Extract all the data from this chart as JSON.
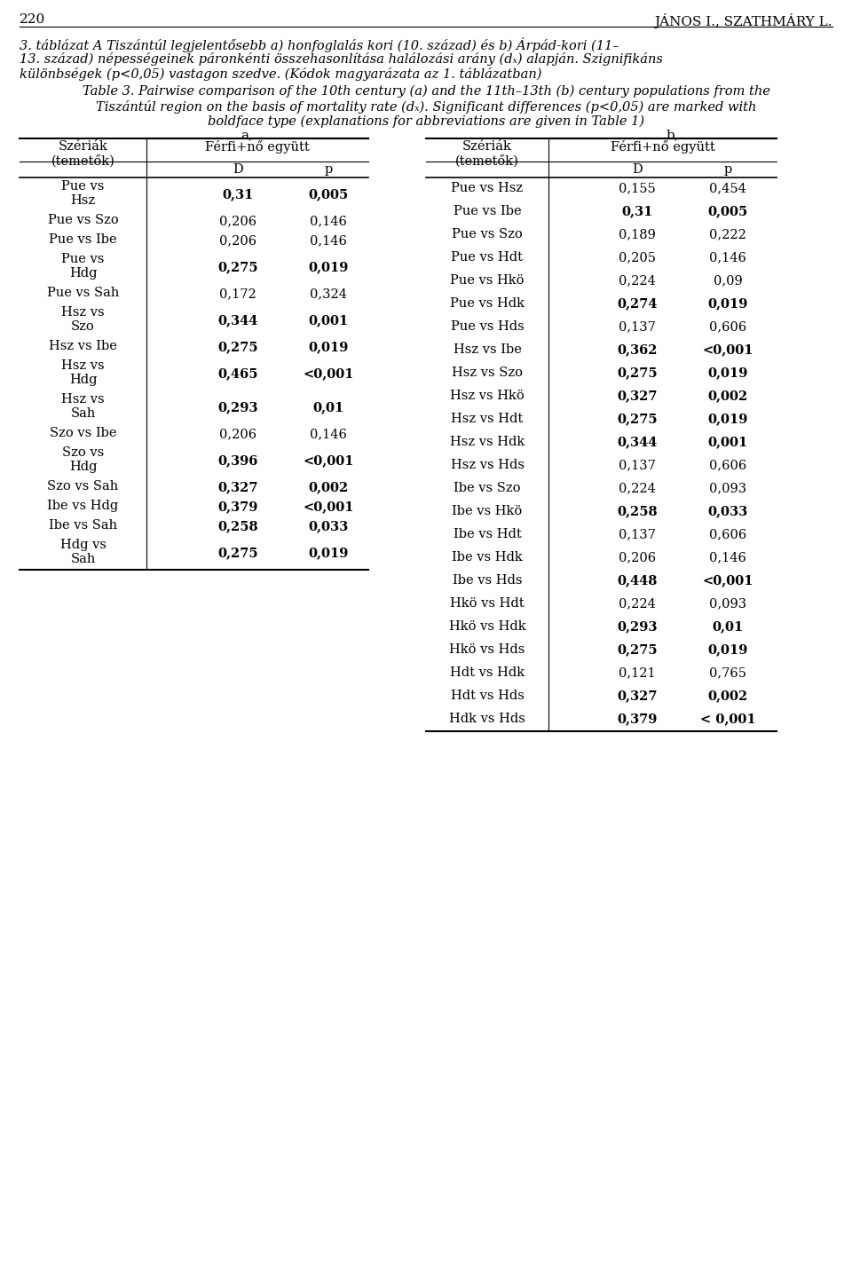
{
  "page_num": "220",
  "page_author": "JÁNOS I., SZATHMÁRY L.",
  "hu_caption_lines": [
    "3. táblázat A Tiszántúl legjelentősebb a) honfoglalás kori (10. század) és b) Árpád-kori (11–",
    "13. század) népességeinek páronkénti összehasonlítása halálozási arány (dₓ) alapján. Szignifikáns",
    "különbségek (p<0,05) vastagon szedve. (Kódok magyarázata az 1. táblázatban)"
  ],
  "en_caption_lines": [
    [
      "Table 3. Pairwise comparison of the 10",
      "th",
      " century (a) and the 11",
      "th",
      "–13",
      "th",
      " (b) century populations from the"
    ],
    [
      "Tiszántúl region on the basis of mortality rate (dₓ). Significant differences (p<0,05) are marked with"
    ],
    [
      "boldface type (explanations for abbreviations are given in Table 1)"
    ]
  ],
  "label_a": "a,",
  "label_b": "b,",
  "col_header_series": "Szériák\n(temetők)",
  "col_header_data": "Férfi+nő együtt",
  "col_D": "D",
  "col_p": "p",
  "table_a_rows": [
    {
      "series": "Pue vs\nHsz",
      "D": "0,31",
      "p": "0,005",
      "bold": true
    },
    {
      "series": "Pue vs Szo",
      "D": "0,206",
      "p": "0,146",
      "bold": false
    },
    {
      "series": "Pue vs Ibe",
      "D": "0,206",
      "p": "0,146",
      "bold": false
    },
    {
      "series": "Pue vs\nHdg",
      "D": "0,275",
      "p": "0,019",
      "bold": true
    },
    {
      "series": "Pue vs Sah",
      "D": "0,172",
      "p": "0,324",
      "bold": false
    },
    {
      "series": "Hsz vs\nSzo",
      "D": "0,344",
      "p": "0,001",
      "bold": true
    },
    {
      "series": "Hsz vs Ibe",
      "D": "0,275",
      "p": "0,019",
      "bold": true
    },
    {
      "series": "Hsz vs\nHdg",
      "D": "0,465",
      "p": "<0,001",
      "bold": true
    },
    {
      "series": "Hsz vs\nSah",
      "D": "0,293",
      "p": "0,01",
      "bold": true
    },
    {
      "series": "Szo vs Ibe",
      "D": "0,206",
      "p": "0,146",
      "bold": false
    },
    {
      "series": "Szo vs\nHdg",
      "D": "0,396",
      "p": "<0,001",
      "bold": true
    },
    {
      "series": "Szo vs Sah",
      "D": "0,327",
      "p": "0,002",
      "bold": true
    },
    {
      "series": "Ibe vs Hdg",
      "D": "0,379",
      "p": "<0,001",
      "bold": true
    },
    {
      "series": "Ibe vs Sah",
      "D": "0,258",
      "p": "0,033",
      "bold": true
    },
    {
      "series": "Hdg vs\nSah",
      "D": "0,275",
      "p": "0,019",
      "bold": true
    }
  ],
  "table_b_rows": [
    {
      "series": "Pue vs Hsz",
      "D": "0,155",
      "p": "0,454",
      "bold": false
    },
    {
      "series": "Pue vs Ibe",
      "D": "0,31",
      "p": "0,005",
      "bold": true
    },
    {
      "series": "Pue vs Szo",
      "D": "0,189",
      "p": "0,222",
      "bold": false
    },
    {
      "series": "Pue vs Hdt",
      "D": "0,205",
      "p": "0,146",
      "bold": false
    },
    {
      "series": "Pue vs Hkö",
      "D": "0,224",
      "p": "0,09",
      "bold": false
    },
    {
      "series": "Pue vs Hdk",
      "D": "0,274",
      "p": "0,019",
      "bold": true
    },
    {
      "series": "Pue vs Hds",
      "D": "0,137",
      "p": "0,606",
      "bold": false
    },
    {
      "series": "Hsz vs Ibe",
      "D": "0,362",
      "p": "<0,001",
      "bold": true
    },
    {
      "series": "Hsz vs Szo",
      "D": "0,275",
      "p": "0,019",
      "bold": true
    },
    {
      "series": "Hsz vs Hkö",
      "D": "0,327",
      "p": "0,002",
      "bold": true
    },
    {
      "series": "Hsz vs Hdt",
      "D": "0,275",
      "p": "0,019",
      "bold": true
    },
    {
      "series": "Hsz vs Hdk",
      "D": "0,344",
      "p": "0,001",
      "bold": true
    },
    {
      "series": "Hsz vs Hds",
      "D": "0,137",
      "p": "0,606",
      "bold": false
    },
    {
      "series": "Ibe vs Szo",
      "D": "0,224",
      "p": "0,093",
      "bold": false
    },
    {
      "series": "Ibe vs Hkö",
      "D": "0,258",
      "p": "0,033",
      "bold": true
    },
    {
      "series": "Ibe vs Hdt",
      "D": "0,137",
      "p": "0,606",
      "bold": false
    },
    {
      "series": "Ibe vs Hdk",
      "D": "0,206",
      "p": "0,146",
      "bold": false
    },
    {
      "series": "Ibe vs Hds",
      "D": "0,448",
      "p": "<0,001",
      "bold": true
    },
    {
      "series": "Hkö vs Hdt",
      "D": "0,224",
      "p": "0,093",
      "bold": false
    },
    {
      "series": "Hkö vs Hdk",
      "D": "0,293",
      "p": "0,01",
      "bold": true
    },
    {
      "series": "Hkö vs Hds",
      "D": "0,275",
      "p": "0,019",
      "bold": true
    },
    {
      "series": "Hdt vs Hdk",
      "D": "0,121",
      "p": "0,765",
      "bold": false
    },
    {
      "series": "Hdt vs Hds",
      "D": "0,327",
      "p": "0,002",
      "bold": true
    },
    {
      "series": "Hdk vs Hds",
      "D": "0,379",
      "p": "< 0,001",
      "bold": true
    }
  ]
}
